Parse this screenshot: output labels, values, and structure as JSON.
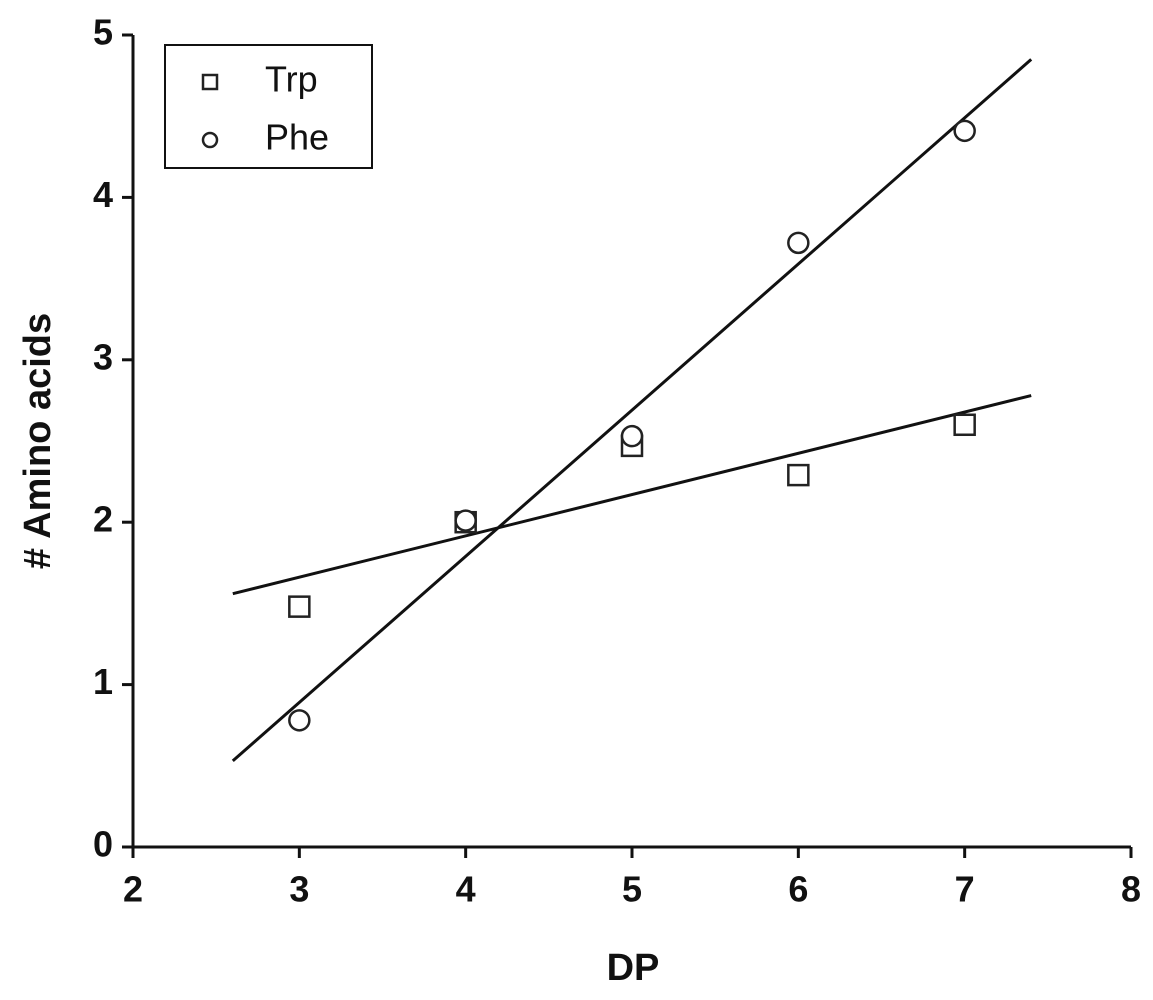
{
  "chart_data": {
    "type": "scatter",
    "xlabel": "DP",
    "ylabel": "# Amino acids",
    "xlim": [
      2,
      8
    ],
    "xticks": [
      2,
      3,
      4,
      5,
      6,
      7,
      8
    ],
    "ylim": [
      0,
      5
    ],
    "yticks": [
      0,
      1,
      2,
      3,
      4,
      5
    ],
    "legend": "upper left",
    "series": [
      {
        "name": "Trp",
        "marker": "square",
        "color": "#222222",
        "x": [
          3,
          4,
          5,
          6,
          7
        ],
        "values": [
          1.48,
          2.0,
          2.47,
          2.29,
          2.6
        ]
      },
      {
        "name": "Phe",
        "marker": "circle",
        "color": "#222222",
        "x": [
          3,
          4,
          5,
          6,
          7
        ],
        "values": [
          0.78,
          2.01,
          2.53,
          3.72,
          4.41
        ]
      }
    ],
    "fits": [
      {
        "color": "#111111",
        "x": [
          2.6,
          7.4
        ],
        "values": [
          1.56,
          2.78
        ]
      },
      {
        "color": "#111111",
        "x": [
          2.6,
          7.4
        ],
        "values": [
          0.53,
          4.85
        ]
      }
    ]
  }
}
